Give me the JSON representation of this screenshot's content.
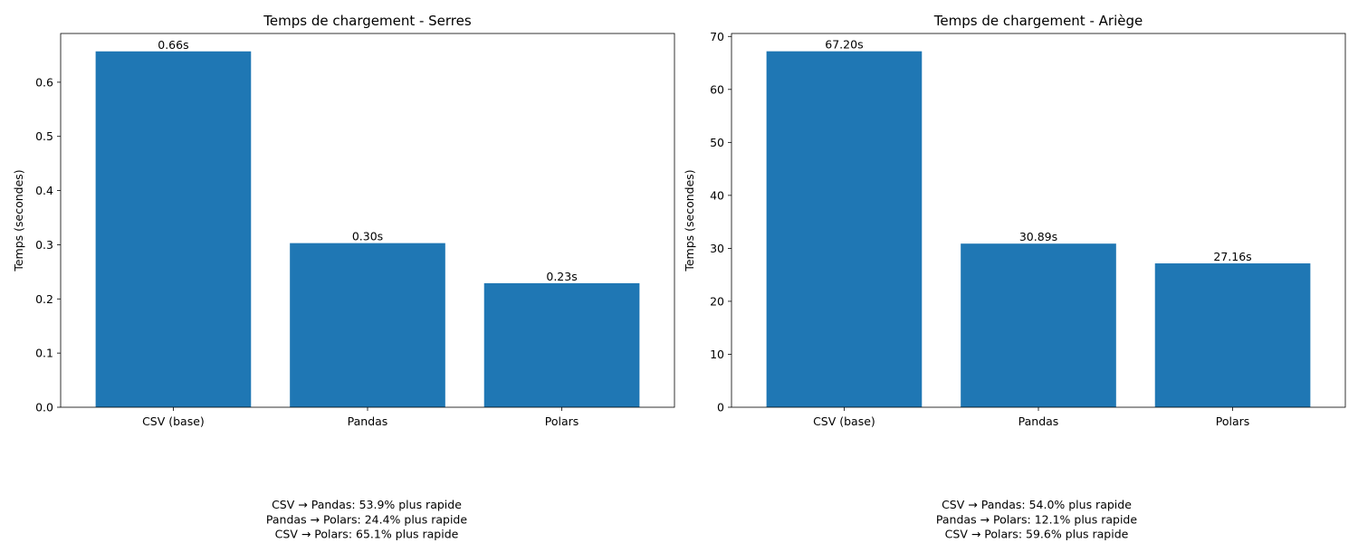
{
  "chart_data": [
    {
      "type": "bar",
      "title": "Temps de chargement - Serres",
      "xlabel": "",
      "ylabel": "Temps (secondes)",
      "categories": [
        "CSV (base)",
        "Pandas",
        "Polars"
      ],
      "values": [
        0.657,
        0.303,
        0.229
      ],
      "data_labels": [
        "0.66s",
        "0.30s",
        "0.23s"
      ],
      "ylim": [
        0,
        0.69
      ],
      "yticks": [
        0.0,
        0.1,
        0.2,
        0.3,
        0.4,
        0.5,
        0.6
      ],
      "ytick_labels": [
        "0.0",
        "0.1",
        "0.2",
        "0.3",
        "0.4",
        "0.5",
        "0.6"
      ],
      "bar_color": "#1f77b4",
      "grid": false,
      "notes": [
        "CSV → Pandas: 53.9% plus rapide",
        "Pandas → Polars: 24.4% plus rapide",
        "CSV → Polars: 65.1% plus rapide"
      ]
    },
    {
      "type": "bar",
      "title": "Temps de chargement - Ariège",
      "xlabel": "",
      "ylabel": "Temps (secondes)",
      "categories": [
        "CSV (base)",
        "Pandas",
        "Polars"
      ],
      "values": [
        67.2,
        30.89,
        27.16
      ],
      "data_labels": [
        "67.20s",
        "30.89s",
        "27.16s"
      ],
      "ylim": [
        0,
        70.56
      ],
      "yticks": [
        0,
        10,
        20,
        30,
        40,
        50,
        60,
        70
      ],
      "ytick_labels": [
        "0",
        "10",
        "20",
        "30",
        "40",
        "50",
        "60",
        "70"
      ],
      "bar_color": "#1f77b4",
      "grid": false,
      "notes": [
        "CSV → Pandas: 54.0% plus rapide",
        "Pandas → Polars: 12.1% plus rapide",
        "CSV → Polars: 59.6% plus rapide"
      ]
    }
  ]
}
